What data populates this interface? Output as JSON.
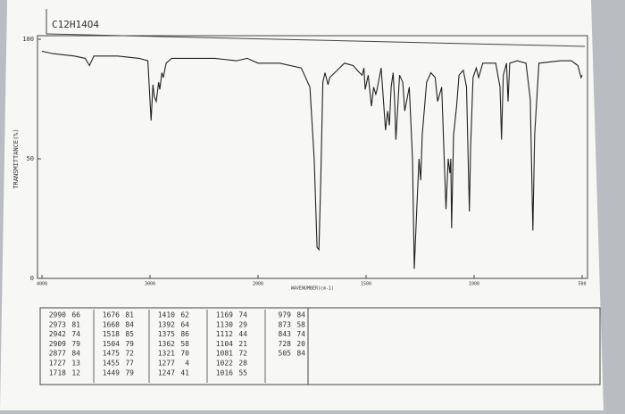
{
  "chart_data": {
    "type": "line",
    "title": "C12H14O4",
    "y_label": "TRANSMITTANCE(%)",
    "x_label": "WAVENUMBER(cm-1)",
    "xlim": [
      4000,
      500
    ],
    "xticks": [
      4000,
      3000,
      2000,
      1500,
      1000,
      500
    ],
    "ylim": [
      0,
      100
    ],
    "yticks": [
      0,
      50,
      100
    ],
    "x": [
      4000,
      3900,
      3700,
      3600,
      3560,
      3520,
      3300,
      3100,
      3020,
      2990,
      2973,
      2960,
      2942,
      2920,
      2909,
      2890,
      2877,
      2850,
      2800,
      2600,
      2400,
      2200,
      2100,
      2000,
      1900,
      1800,
      1760,
      1740,
      1727,
      1718,
      1710,
      1700,
      1690,
      1676,
      1668,
      1600,
      1560,
      1530,
      1518,
      1510,
      1504,
      1490,
      1475,
      1465,
      1455,
      1449,
      1430,
      1410,
      1400,
      1392,
      1384,
      1375,
      1368,
      1362,
      1345,
      1330,
      1321,
      1300,
      1285,
      1277,
      1265,
      1255,
      1247,
      1240,
      1220,
      1200,
      1180,
      1169,
      1150,
      1130,
      1120,
      1112,
      1108,
      1104,
      1095,
      1081,
      1070,
      1050,
      1035,
      1022,
      1016,
      1005,
      990,
      979,
      960,
      930,
      900,
      880,
      873,
      865,
      850,
      843,
      835,
      800,
      760,
      740,
      728,
      720,
      700,
      600,
      550,
      520,
      505,
      500
    ],
    "series": [
      {
        "name": "C12H14O4",
        "color": "#222222",
        "values": [
          95,
          94,
          93,
          92,
          89,
          93,
          93,
          92,
          91,
          66,
          81,
          76,
          74,
          82,
          79,
          86,
          84,
          90,
          92,
          92,
          92,
          91,
          92,
          90,
          90,
          88,
          80,
          50,
          13,
          12,
          40,
          82,
          86,
          81,
          84,
          90,
          89,
          86,
          85,
          88,
          79,
          85,
          72,
          80,
          77,
          79,
          88,
          62,
          70,
          64,
          80,
          86,
          75,
          58,
          85,
          82,
          70,
          80,
          50,
          4,
          30,
          50,
          41,
          60,
          82,
          86,
          84,
          74,
          80,
          29,
          50,
          44,
          50,
          21,
          60,
          72,
          85,
          87,
          80,
          28,
          55,
          84,
          88,
          84,
          90,
          90,
          90,
          80,
          58,
          85,
          90,
          74,
          90,
          91,
          90,
          75,
          20,
          60,
          90,
          91,
          91,
          89,
          84,
          85
        ]
      }
    ],
    "peak_table": [
      [
        [
          2990,
          66
        ],
        [
          2973,
          81
        ],
        [
          2942,
          74
        ],
        [
          2909,
          79
        ],
        [
          2877,
          84
        ],
        [
          1727,
          13
        ],
        [
          1718,
          12
        ]
      ],
      [
        [
          1676,
          81
        ],
        [
          1668,
          84
        ],
        [
          1518,
          85
        ],
        [
          1504,
          79
        ],
        [
          1475,
          72
        ],
        [
          1455,
          77
        ],
        [
          1449,
          79
        ]
      ],
      [
        [
          1410,
          62
        ],
        [
          1392,
          64
        ],
        [
          1375,
          86
        ],
        [
          1362,
          58
        ],
        [
          1321,
          70
        ],
        [
          1277,
          4
        ],
        [
          1247,
          41
        ]
      ],
      [
        [
          1169,
          74
        ],
        [
          1130,
          29
        ],
        [
          1112,
          44
        ],
        [
          1104,
          21
        ],
        [
          1081,
          72
        ],
        [
          1022,
          28
        ],
        [
          1016,
          55
        ]
      ],
      [
        [
          979,
          84
        ],
        [
          873,
          58
        ],
        [
          843,
          74
        ],
        [
          728,
          20
        ],
        [
          505,
          84
        ]
      ]
    ]
  }
}
